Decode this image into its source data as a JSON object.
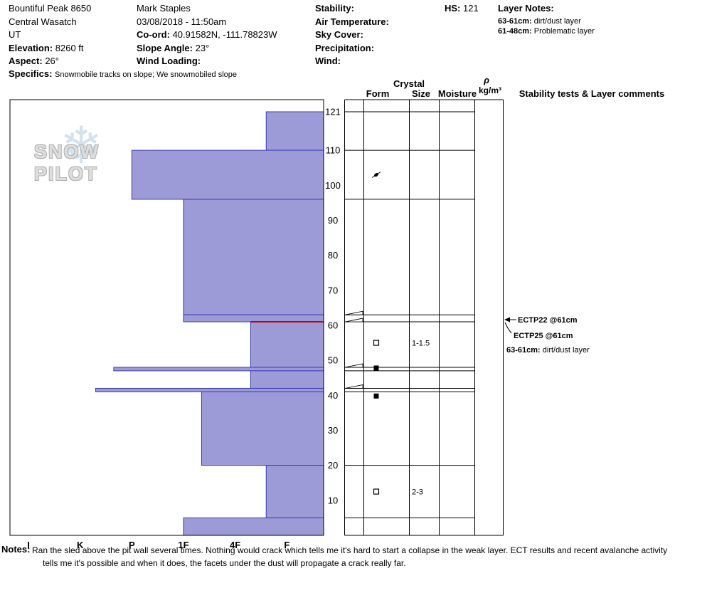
{
  "header": {
    "location": {
      "name": "Bountiful Peak 8650",
      "region": "Central Wasatch",
      "state": "UT",
      "elevation_label": "Elevation:",
      "elevation_value": "8260 ft",
      "aspect_label": "Aspect:",
      "aspect_value": "26°",
      "specifics_label": "Specifics:",
      "specifics_value": "Snowmobile tracks on slope; We snowmobiled slope"
    },
    "observer": {
      "name": "Mark Staples",
      "datetime": "03/08/2018 - 11:50am",
      "coord_label": "Co-ord:",
      "coord_value": "40.91582N, -111.78823W",
      "slope_angle_label": "Slope Angle:",
      "slope_angle_value": "23°",
      "wind_loading_label": "Wind Loading:"
    },
    "weather": {
      "stability_label": "Stability:",
      "air_temperature_label": "Air Temperature:",
      "sky_cover_label": "Sky Cover:",
      "precipitation_label": "Precipitation:",
      "wind_label": "Wind:"
    },
    "hs_label": "HS:",
    "hs_value": "121",
    "layer_notes": {
      "title": "Layer Notes:",
      "items": [
        {
          "range": "63-61cm:",
          "text": "dirt/dust layer"
        },
        {
          "range": "61-48cm:",
          "text": "Problematic layer"
        }
      ]
    }
  },
  "logo": {
    "text": "SNOW PILOT",
    "snowflake": "❄"
  },
  "chart_data": {
    "type": "bar",
    "title": "Snowpit hardness profile",
    "orientation": "horizontal",
    "hardness_categories": [
      "I",
      "K",
      "P",
      "1F",
      "4F",
      "F"
    ],
    "depth_ticks": [
      121,
      110,
      100,
      90,
      80,
      70,
      60,
      50,
      40,
      30,
      20,
      10
    ],
    "ylim": [
      0,
      121
    ],
    "depth_units": "cm",
    "layers": [
      {
        "top": 121,
        "bottom": 110,
        "hardness": "F+",
        "hardness_value": 4.6
      },
      {
        "top": 110,
        "bottom": 96,
        "hardness": "P",
        "hardness_value": 2.0
      },
      {
        "top": 96,
        "bottom": 63,
        "hardness": "1F",
        "hardness_value": 3.0
      },
      {
        "top": 63,
        "bottom": 61,
        "hardness": "1F",
        "hardness_value": 3.0
      },
      {
        "top": 61,
        "bottom": 48,
        "hardness": "4F-",
        "hardness_value": 4.3,
        "failure_plane": true
      },
      {
        "top": 48,
        "bottom": 47,
        "hardness": "P+",
        "hardness_value": 1.65
      },
      {
        "top": 47,
        "bottom": 42,
        "hardness": "4F-",
        "hardness_value": 4.3
      },
      {
        "top": 42,
        "bottom": 41,
        "hardness": "K-P",
        "hardness_value": 1.3
      },
      {
        "top": 41,
        "bottom": 20,
        "hardness": "1F-",
        "hardness_value": 3.35
      },
      {
        "top": 20,
        "bottom": 5,
        "hardness": "F+",
        "hardness_value": 4.6
      },
      {
        "top": 5,
        "bottom": 0,
        "hardness": "1F",
        "hardness_value": 3.0
      }
    ],
    "grain_rows": [
      {
        "depth": 103,
        "form": "decomposing-fragments",
        "size": ""
      },
      {
        "depth": 55,
        "form": "facets",
        "size": "1-1.5"
      },
      {
        "depth": 47.8,
        "form": "ice",
        "size": ""
      },
      {
        "depth": 39.8,
        "form": "ice",
        "size": ""
      },
      {
        "depth": 12.5,
        "form": "facets",
        "size": "2-3"
      }
    ],
    "marked_depths": [
      63,
      61,
      48,
      42
    ],
    "column_headers": {
      "crystal": "Crystal",
      "form": "Form",
      "size": "Size",
      "moisture": "Moisture",
      "rho": "ρ",
      "rho_units": "kg/m³",
      "comments": "Stability tests & Layer comments"
    },
    "tests": [
      {
        "label": "ECTP22 @61cm",
        "depth": 61
      },
      {
        "label": "ECTP25 @61cm",
        "depth": 61
      }
    ],
    "layer_comment": {
      "range": "63-61cm:",
      "text": "dirt/dust layer"
    }
  },
  "notes": {
    "label": "Notes:",
    "line1": "Ran the sled above the pit wall several times. Nothing would crack which tells me it's hard to start a collapse in the weak layer. ECT results and recent avalanche activity",
    "line2": "tells  me it's possible and when it does, the facets under the dust will propagate a crack really far."
  },
  "colors": {
    "bar_fill": "#9c9bd7",
    "bar_stroke": "#3a3ab4",
    "failure_line": "#cc0000",
    "grid": "#000000",
    "logo_text": "#dedede",
    "logo_flake": "#b9cfe3"
  }
}
